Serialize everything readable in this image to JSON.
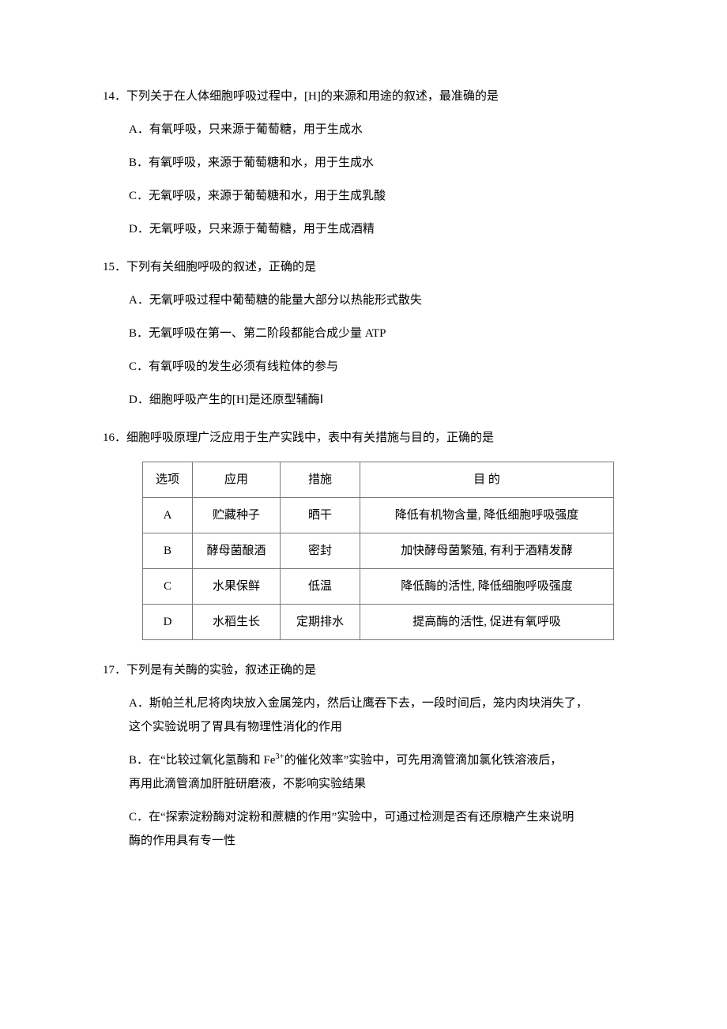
{
  "q14": {
    "stem": "14．下列关于在人体细胞呼吸过程中，[H]的来源和用途的叙述，最准确的是",
    "A": "A．有氧呼吸，只来源于葡萄糖，用于生成水",
    "B": "B．有氧呼吸，来源于葡萄糖和水，用于生成水",
    "C": "C．无氧呼吸，来源于葡萄糖和水，用于生成乳酸",
    "D": "D．无氧呼吸，只来源于葡萄糖，用于生成酒精"
  },
  "q15": {
    "stem": "15．下列有关细胞呼吸的叙述，正确的是",
    "A": "A．无氧呼吸过程中葡萄糖的能量大部分以热能形式散失",
    "B": "B．无氧呼吸在第一、第二阶段都能合成少量 ATP",
    "C": "C．有氧呼吸的发生必须有线粒体的参与",
    "D": "D．细胞呼吸产生的[H]是还原型辅酶Ⅰ"
  },
  "q16": {
    "stem": "16．细胞呼吸原理广泛应用于生产实践中，表中有关措施与目的，正确的是",
    "table": {
      "headers": {
        "opt": "选项",
        "app": "应用",
        "measure": "措施",
        "purpose": "目        的"
      },
      "rows": [
        {
          "opt": "A",
          "app": "贮藏种子",
          "measure": "晒干",
          "purpose": "降低有机物含量, 降低细胞呼吸强度"
        },
        {
          "opt": "B",
          "app": "酵母菌酿酒",
          "measure": "密封",
          "purpose": "加快酵母菌繁殖, 有利于酒精发酵"
        },
        {
          "opt": "C",
          "app": "水果保鲜",
          "measure": "低温",
          "purpose": "降低酶的活性, 降低细胞呼吸强度"
        },
        {
          "opt": "D",
          "app": "水稻生长",
          "measure": "定期排水",
          "purpose": "提高酶的活性, 促进有氧呼吸"
        }
      ]
    }
  },
  "q17": {
    "stem": "17．下列是有关酶的实验，叙述正确的是",
    "A1": "A．斯帕兰札尼将肉块放入金属笼内，然后让鹰吞下去，一段时间后，笼内肉块消失了，",
    "A2": "这个实验说明了胃具有物理性消化的作用",
    "B1_pre": "B．在“比较过氧化氢酶和 Fe",
    "B1_post": "的催化效率”实验中，可先用滴管滴加氯化铁溶液后，",
    "B_sup": "3+",
    "B2": "再用此滴管滴加肝脏研磨液，不影响实验结果",
    "C1": "C．在“探索淀粉酶对淀粉和蔗糖的作用”实验中，可通过检测是否有还原糖产生来说明",
    "C2": "酶的作用具有专一性"
  }
}
